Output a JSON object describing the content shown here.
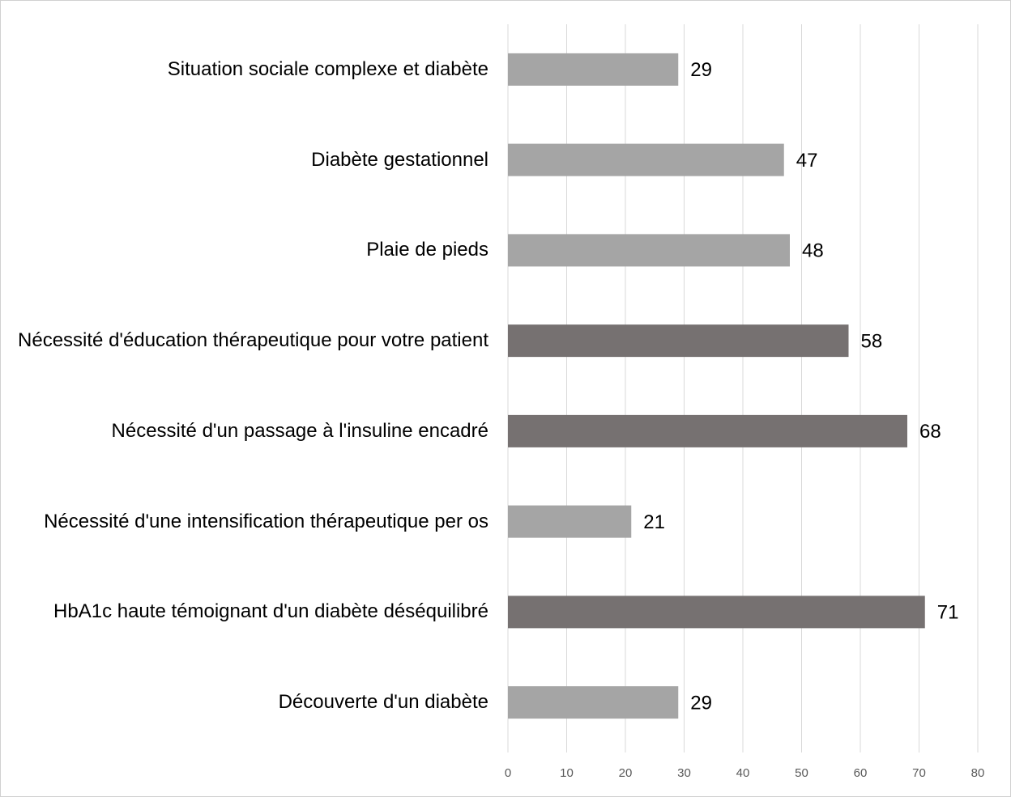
{
  "chart_data": {
    "type": "barh",
    "categories": [
      "Situation sociale complexe et diabète",
      "Diabète gestationnel",
      "Plaie de pieds",
      "Nécessité d'éducation thérapeutique pour votre patient",
      "Nécessité d'un passage à l'insuline encadré",
      "Nécessité d'une intensification thérapeutique per os",
      "HbA1c haute témoignant d'un diabète déséquilibré",
      "Découverte d'un diabète"
    ],
    "values": [
      29,
      47,
      48,
      58,
      68,
      21,
      71,
      29
    ],
    "colors": [
      "#a5a5a5",
      "#a5a5a5",
      "#a5a5a5",
      "#767171",
      "#767171",
      "#a5a5a5",
      "#767171",
      "#a5a5a5"
    ],
    "xlim": [
      0,
      80
    ],
    "xticks": [
      0,
      10,
      20,
      30,
      40,
      50,
      60,
      70,
      80
    ],
    "grid": true
  }
}
